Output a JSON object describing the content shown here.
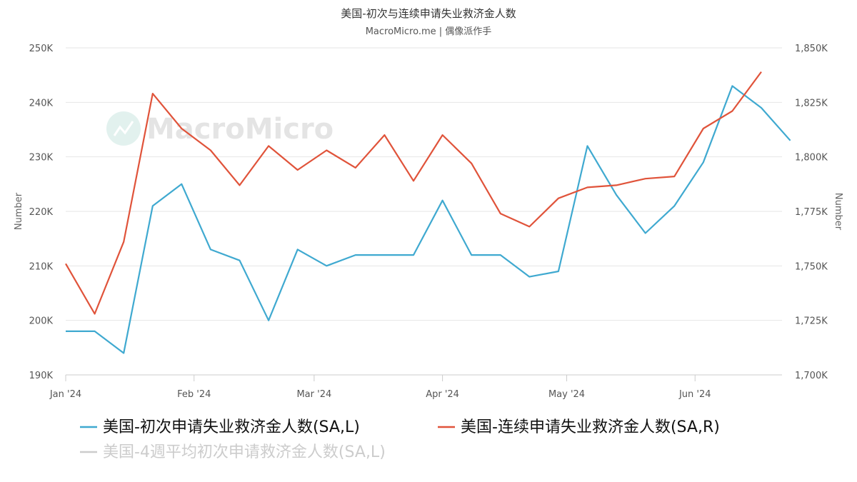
{
  "chart_data": {
    "type": "line",
    "title": "美国-初次与连续申请失业救济金人数",
    "subtitle": "MacroMicro.me | 偶像派作手",
    "watermark": "MacroMicro",
    "left_axis": {
      "label": "Number",
      "range": [
        190000,
        250000
      ],
      "ticks": [
        190000,
        200000,
        210000,
        220000,
        230000,
        240000,
        250000
      ],
      "tick_labels": [
        "190K",
        "200K",
        "210K",
        "220K",
        "230K",
        "240K",
        "250K"
      ]
    },
    "right_axis": {
      "label": "Number",
      "range": [
        1700000,
        1850000
      ],
      "ticks": [
        1700000,
        1725000,
        1750000,
        1775000,
        1800000,
        1825000,
        1850000
      ],
      "tick_labels": [
        "1,700K",
        "1,725K",
        "1,750K",
        "1,775K",
        "1,800K",
        "1,825K",
        "1,850K"
      ]
    },
    "x_axis": {
      "range": [
        "2024-01-01",
        "2024-06-22"
      ],
      "ticks": [
        "2024-01-01",
        "2024-02-01",
        "2024-03-01",
        "2024-04-01",
        "2024-05-01",
        "2024-06-01"
      ],
      "tick_labels": [
        "Jan '24",
        "Feb '24",
        "Mar '24",
        "Apr '24",
        "May '24",
        "Jun '24"
      ]
    },
    "grid": "horizontal",
    "legend_position": "bottom",
    "series": [
      {
        "name": "美国-初次申请失业救济金人数(SA,L)",
        "axis": "left",
        "color": "#3fa9d0",
        "visible": true,
        "points": [
          [
            "2024-01-01",
            198000
          ],
          [
            "2024-01-08",
            198000
          ],
          [
            "2024-01-15",
            194000
          ],
          [
            "2024-01-22",
            221000
          ],
          [
            "2024-01-29",
            225000
          ],
          [
            "2024-02-05",
            213000
          ],
          [
            "2024-02-12",
            211000
          ],
          [
            "2024-02-19",
            200000
          ],
          [
            "2024-02-26",
            213000
          ],
          [
            "2024-03-04",
            210000
          ],
          [
            "2024-03-11",
            212000
          ],
          [
            "2024-03-18",
            212000
          ],
          [
            "2024-03-25",
            212000
          ],
          [
            "2024-04-01",
            222000
          ],
          [
            "2024-04-08",
            212000
          ],
          [
            "2024-04-15",
            212000
          ],
          [
            "2024-04-22",
            208000
          ],
          [
            "2024-04-29",
            209000
          ],
          [
            "2024-05-06",
            232000
          ],
          [
            "2024-05-13",
            223000
          ],
          [
            "2024-05-20",
            216000
          ],
          [
            "2024-05-27",
            221000
          ],
          [
            "2024-06-03",
            229000
          ],
          [
            "2024-06-10",
            243000
          ],
          [
            "2024-06-17",
            239000
          ],
          [
            "2024-06-24",
            233000
          ]
        ]
      },
      {
        "name": "美国-连续申请失业救济金人数(SA,R)",
        "axis": "right",
        "color": "#e0533a",
        "visible": true,
        "points": [
          [
            "2024-01-01",
            1751000
          ],
          [
            "2024-01-08",
            1728000
          ],
          [
            "2024-01-15",
            1761000
          ],
          [
            "2024-01-22",
            1829000
          ],
          [
            "2024-01-29",
            1813000
          ],
          [
            "2024-02-05",
            1803000
          ],
          [
            "2024-02-12",
            1787000
          ],
          [
            "2024-02-19",
            1805000
          ],
          [
            "2024-02-26",
            1794000
          ],
          [
            "2024-03-04",
            1803000
          ],
          [
            "2024-03-11",
            1795000
          ],
          [
            "2024-03-18",
            1810000
          ],
          [
            "2024-03-25",
            1789000
          ],
          [
            "2024-04-01",
            1810000
          ],
          [
            "2024-04-08",
            1797000
          ],
          [
            "2024-04-15",
            1774000
          ],
          [
            "2024-04-22",
            1768000
          ],
          [
            "2024-04-29",
            1781000
          ],
          [
            "2024-05-06",
            1786000
          ],
          [
            "2024-05-13",
            1787000
          ],
          [
            "2024-05-20",
            1790000
          ],
          [
            "2024-05-27",
            1791000
          ],
          [
            "2024-06-03",
            1813000
          ],
          [
            "2024-06-10",
            1821000
          ],
          [
            "2024-06-17",
            1839000
          ]
        ]
      },
      {
        "name": "美国-4週平均初次申请救济金人数(SA,L)",
        "axis": "left",
        "color": "#cccccc",
        "visible": false,
        "points": []
      }
    ]
  }
}
